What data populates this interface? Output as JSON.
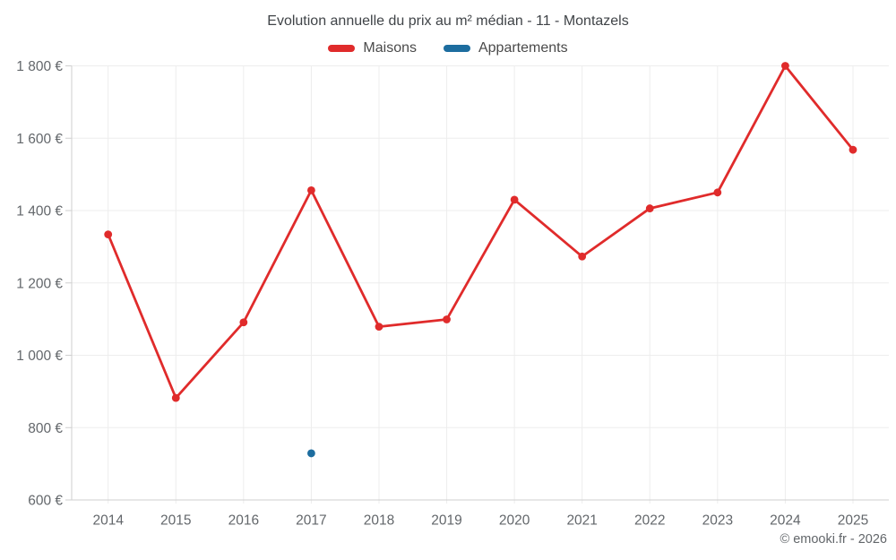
{
  "header": {
    "title": "Evolution annuelle du prix au m² médian - 11 - Montazels"
  },
  "legend": [
    {
      "label": "Maisons",
      "color": "#e02b2b"
    },
    {
      "label": "Appartements",
      "color": "#1d6d9f"
    }
  ],
  "footer": {
    "attribution": "© emooki.fr - 2026"
  },
  "theme": {
    "grid_color": "#ededed",
    "axis_color": "#cfcfcf",
    "tick_label_color": "#63676b",
    "background": "#ffffff"
  },
  "chart_data": {
    "type": "line",
    "title": "Evolution annuelle du prix au m² médian - 11 - Montazels",
    "xlabel": "",
    "ylabel": "",
    "categories": [
      "2014",
      "2015",
      "2016",
      "2017",
      "2018",
      "2019",
      "2020",
      "2021",
      "2022",
      "2023",
      "2024",
      "2025"
    ],
    "series": [
      {
        "name": "Maisons",
        "color": "#e02b2b",
        "values": [
          1334,
          882,
          1091,
          1456,
          1079,
          1099,
          1430,
          1273,
          1406,
          1450,
          1800,
          1568
        ]
      },
      {
        "name": "Appartements",
        "color": "#1d6d9f",
        "values": [
          null,
          null,
          null,
          729,
          null,
          null,
          null,
          null,
          null,
          null,
          null,
          null
        ]
      }
    ],
    "ylim": [
      600,
      1800
    ],
    "yticks": {
      "values": [
        600,
        800,
        1000,
        1200,
        1400,
        1600,
        1800
      ],
      "labels": [
        "600 €",
        "800 €",
        "1 000 €",
        "1 200 €",
        "1 400 €",
        "1 600 €",
        "1 800 €"
      ]
    },
    "grid": true,
    "legend_position": "top",
    "currency": "€"
  }
}
